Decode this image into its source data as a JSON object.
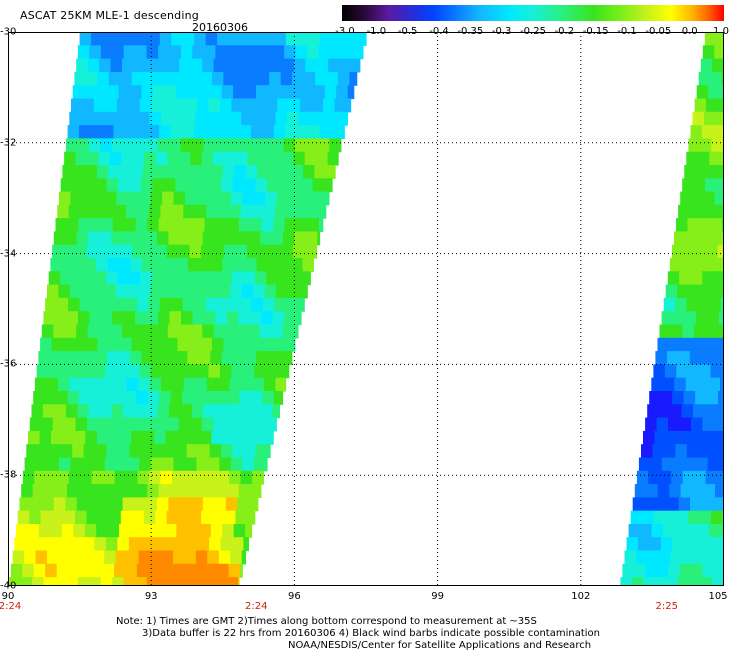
{
  "header": {
    "title": "ASCAT 25KM MLE-1 descending",
    "date": "20160306"
  },
  "colorbar": {
    "ticks": [
      "-3.0",
      "-1.0",
      "-0.5",
      "-0.4",
      "-0.35",
      "-0.3",
      "-0.25",
      "-0.2",
      "-0.15",
      "-0.1",
      "-0.05",
      "0.0",
      "1.0"
    ]
  },
  "map": {
    "lat_labels": [
      "-30",
      "-32",
      "-34",
      "-36",
      "-38",
      "-40"
    ],
    "lon_labels": [
      "90",
      "93",
      "96",
      "99",
      "102",
      "105"
    ],
    "lat_range": [
      -40,
      -30
    ],
    "lon_range": [
      90,
      105
    ],
    "swaths": [
      {
        "name": "west-swath",
        "lon_start_top": 91.5,
        "lon_end_top": 97.5,
        "lon_start_bottom": 90.0,
        "lon_end_bottom": 94.8
      },
      {
        "name": "east-swath",
        "lon_start_top": 104.6,
        "lon_end_top": 105.0,
        "lon_start_bottom": 102.8,
        "lon_end_bottom": 105.0
      }
    ]
  },
  "time_labels": [
    {
      "text": "2:24",
      "lon": 90.0
    },
    {
      "text": "2:24",
      "lon": 95.2
    },
    {
      "text": "2:25",
      "lon": 103.8
    }
  ],
  "footer": {
    "line1": "Note: 1) Times are GMT 2)Times along bottom correspond to measurement at ~35S",
    "line2": "3)Data buffer is 22 hrs from 20160306 4) Black wind barbs indicate possible contamination",
    "line3": "NOAA/NESDIS/Center for Satellite Applications and Research"
  }
}
